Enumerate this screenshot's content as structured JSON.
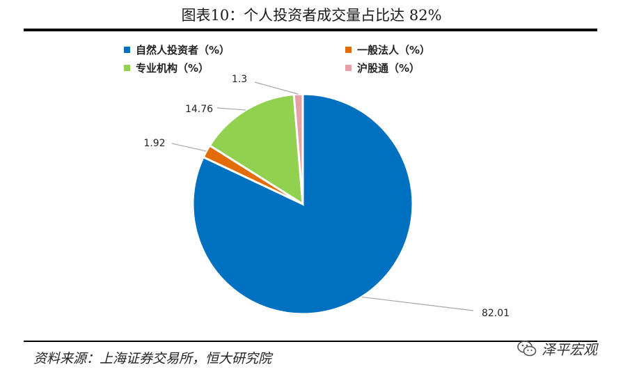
{
  "page": {
    "title": "图表10：个人投资者成交量占比达 82%",
    "source": "资料来源：上海证券交易所，恒大研究院",
    "watermark": "泽平宏观"
  },
  "chart_data": {
    "type": "pie",
    "title": "图表10：个人投资者成交量占比达 82%",
    "categories": [
      "自然人投资者（%）",
      "一般法人（%）",
      "专业机构（%）",
      "沪股通（%）"
    ],
    "values": [
      82.01,
      1.92,
      14.76,
      1.3
    ],
    "value_labels": [
      "82.01",
      "1.92",
      "14.76",
      "1.3"
    ],
    "colors": [
      "#0070c0",
      "#e36c0a",
      "#92d050",
      "#e6a0a8"
    ],
    "legend_position": "top",
    "start": "12-o'clock",
    "direction": "clockwise"
  }
}
